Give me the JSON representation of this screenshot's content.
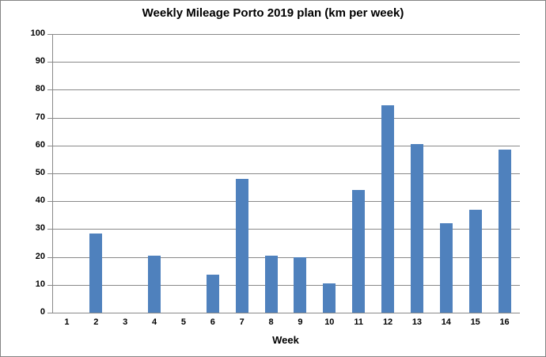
{
  "chart_data": {
    "type": "bar",
    "title": "Weekly Mileage Porto 2019 plan (km per week)",
    "categories": [
      "1",
      "2",
      "3",
      "4",
      "5",
      "6",
      "7",
      "8",
      "9",
      "10",
      "11",
      "12",
      "13",
      "14",
      "15",
      "16"
    ],
    "values": [
      0,
      28.5,
      0,
      20.5,
      0,
      13.5,
      48,
      20.5,
      20,
      10.5,
      44,
      74.5,
      60.5,
      32,
      37,
      58.5
    ],
    "xlabel": "Week",
    "ylabel": "",
    "ylim": [
      0,
      100
    ],
    "ytick_step": 10,
    "yticks": [
      0,
      10,
      20,
      30,
      40,
      50,
      60,
      70,
      80,
      90,
      100
    ],
    "grid": true,
    "legend": false,
    "series_name": "km per week"
  },
  "colors": {
    "bar": "#4F81BD",
    "gridline": "#898989",
    "axis": "#898989",
    "chart_border": "#848484",
    "text": "#000000",
    "background": "#FFFFFF"
  }
}
